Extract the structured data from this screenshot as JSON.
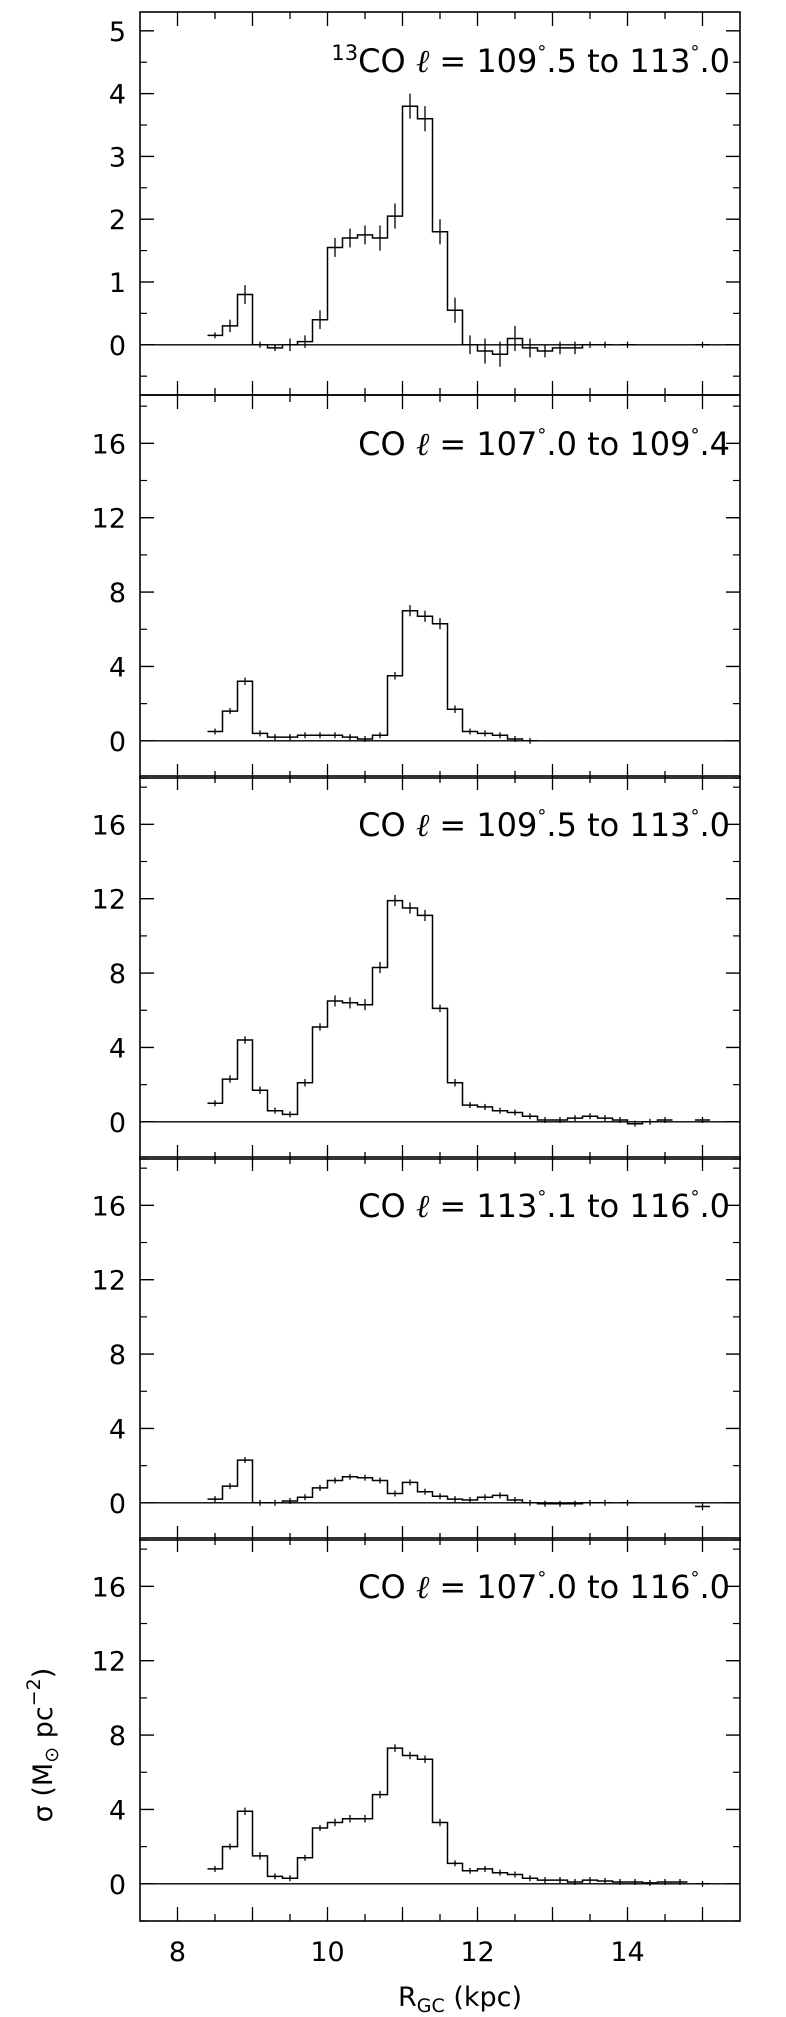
{
  "figure": {
    "xlabel": "R",
    "xlabel_sub": "GC",
    "xlabel_unit": " (kpc)",
    "ylabel": "σ (M",
    "ylabel_sun": "⊙",
    "ylabel_mid": " pc",
    "ylabel_sup": "−2",
    "ylabel_end": ")"
  },
  "chart_data": [
    {
      "type": "step",
      "panel_label": {
        "iso": "13",
        "mol": "CO",
        "lsym": "ℓ",
        "text": " = 109.5° to 113.0°",
        "pre": " = 109",
        "d1": "°",
        "mid": ".5 to 113",
        "d2": "°",
        "post": ".0"
      },
      "xlim": [
        7.5,
        15.5
      ],
      "ylim": [
        -0.8,
        5.3
      ],
      "xticks": [
        8,
        10,
        12,
        14
      ],
      "yticks": [
        0,
        1,
        2,
        3,
        4,
        5
      ],
      "ytick_labels": [
        "0",
        "1",
        "2",
        "3",
        "4",
        "5"
      ],
      "bin_width": 0.2,
      "x": [
        8.5,
        8.7,
        8.9,
        9.1,
        9.3,
        9.5,
        9.7,
        9.9,
        10.1,
        10.3,
        10.5,
        10.7,
        10.9,
        11.1,
        11.3,
        11.5,
        11.7,
        11.9,
        12.1,
        12.3,
        12.5,
        12.7,
        12.9,
        13.1,
        13.3,
        13.5,
        13.7,
        14.0,
        15.0
      ],
      "y": [
        0.15,
        0.3,
        0.8,
        0.0,
        -0.05,
        0.0,
        0.05,
        0.4,
        1.55,
        1.7,
        1.75,
        1.7,
        2.05,
        3.8,
        3.6,
        1.8,
        0.55,
        0.0,
        -0.1,
        -0.15,
        0.1,
        -0.05,
        -0.1,
        -0.05,
        -0.05,
        0.0,
        0.0,
        0.0,
        0.0
      ],
      "err": [
        0.0,
        0.1,
        0.15,
        0.0,
        0.05,
        0.1,
        0.1,
        0.15,
        0.15,
        0.15,
        0.15,
        0.2,
        0.2,
        0.2,
        0.2,
        0.2,
        0.2,
        0.15,
        0.2,
        0.2,
        0.2,
        0.15,
        0.1,
        0.1,
        0.1,
        0.05,
        0.05,
        0.05,
        0.0
      ]
    },
    {
      "type": "step",
      "panel_label": {
        "iso": "",
        "mol": "CO",
        "lsym": "ℓ",
        "pre": " = 107",
        "d1": "°",
        "mid": ".0 to 109",
        "d2": "°",
        "post": ".4"
      },
      "xlim": [
        7.5,
        15.5
      ],
      "ylim": [
        -2.0,
        18.6
      ],
      "xticks": [
        8,
        10,
        12,
        14
      ],
      "yticks": [
        0,
        4,
        8,
        12,
        16
      ],
      "ytick_labels": [
        "0",
        "4",
        "8",
        "12",
        "16"
      ],
      "bin_width": 0.2,
      "x": [
        8.5,
        8.7,
        8.9,
        9.1,
        9.3,
        9.5,
        9.7,
        9.9,
        10.1,
        10.3,
        10.5,
        10.7,
        10.9,
        11.1,
        11.3,
        11.5,
        11.7,
        11.9,
        12.1,
        12.3,
        12.5,
        12.7
      ],
      "y": [
        0.5,
        1.6,
        3.2,
        0.4,
        0.2,
        0.2,
        0.3,
        0.3,
        0.3,
        0.2,
        0.1,
        0.3,
        3.5,
        7.0,
        6.7,
        6.3,
        1.7,
        0.5,
        0.4,
        0.3,
        0.1,
        0.0
      ],
      "err": [
        0.1,
        0.1,
        0.2,
        0.1,
        0.1,
        0.1,
        0.1,
        0.1,
        0.1,
        0.1,
        0.1,
        0.1,
        0.2,
        0.3,
        0.3,
        0.3,
        0.2,
        0.1,
        0.1,
        0.1,
        0.05,
        0.05
      ]
    },
    {
      "type": "step",
      "panel_label": {
        "iso": "",
        "mol": "CO",
        "lsym": "ℓ",
        "pre": " = 109",
        "d1": "°",
        "mid": ".5 to 113",
        "d2": "°",
        "post": ".0"
      },
      "xlim": [
        7.5,
        15.5
      ],
      "ylim": [
        -2.0,
        18.6
      ],
      "xticks": [
        8,
        10,
        12,
        14
      ],
      "yticks": [
        0,
        4,
        8,
        12,
        16
      ],
      "ytick_labels": [
        "0",
        "4",
        "8",
        "12",
        "16"
      ],
      "bin_width": 0.2,
      "x": [
        8.5,
        8.7,
        8.9,
        9.1,
        9.3,
        9.5,
        9.7,
        9.9,
        10.1,
        10.3,
        10.5,
        10.7,
        10.9,
        11.1,
        11.3,
        11.5,
        11.7,
        11.9,
        12.1,
        12.3,
        12.5,
        12.7,
        12.9,
        13.1,
        13.3,
        13.5,
        13.7,
        13.9,
        14.1,
        14.3,
        14.5,
        15.0
      ],
      "y": [
        1.0,
        2.3,
        4.4,
        1.7,
        0.6,
        0.4,
        2.1,
        5.1,
        6.5,
        6.4,
        6.3,
        8.3,
        11.9,
        11.5,
        11.1,
        6.1,
        2.1,
        0.9,
        0.8,
        0.6,
        0.5,
        0.3,
        0.1,
        0.1,
        0.2,
        0.3,
        0.2,
        0.1,
        -0.1,
        0.0,
        0.1,
        0.1
      ],
      "err": [
        0.1,
        0.2,
        0.2,
        0.2,
        0.1,
        0.1,
        0.2,
        0.2,
        0.3,
        0.3,
        0.3,
        0.3,
        0.3,
        0.3,
        0.3,
        0.2,
        0.2,
        0.1,
        0.1,
        0.1,
        0.1,
        0.1,
        0.1,
        0.1,
        0.1,
        0.1,
        0.1,
        0.1,
        0.1,
        0.1,
        0.05,
        0.05
      ]
    },
    {
      "type": "step",
      "panel_label": {
        "iso": "",
        "mol": "CO",
        "lsym": "ℓ",
        "pre": " = 113",
        "d1": "°",
        "mid": ".1 to 116",
        "d2": "°",
        "post": ".0"
      },
      "xlim": [
        7.5,
        15.5
      ],
      "ylim": [
        -2.0,
        18.6
      ],
      "xticks": [
        8,
        10,
        12,
        14
      ],
      "yticks": [
        0,
        4,
        8,
        12,
        16
      ],
      "ytick_labels": [
        "0",
        "4",
        "8",
        "12",
        "16"
      ],
      "bin_width": 0.2,
      "x": [
        8.5,
        8.7,
        8.9,
        9.1,
        9.3,
        9.5,
        9.7,
        9.9,
        10.1,
        10.3,
        10.5,
        10.7,
        10.9,
        11.1,
        11.3,
        11.5,
        11.7,
        11.9,
        12.1,
        12.3,
        12.5,
        12.7,
        12.9,
        13.1,
        13.3,
        13.5,
        13.7,
        14.0,
        15.0
      ],
      "y": [
        0.2,
        0.9,
        2.3,
        0.0,
        0.0,
        0.1,
        0.3,
        0.8,
        1.2,
        1.4,
        1.35,
        1.2,
        0.5,
        1.1,
        0.6,
        0.35,
        0.2,
        0.15,
        0.3,
        0.4,
        0.15,
        0.0,
        -0.05,
        -0.05,
        -0.05,
        0.0,
        0.0,
        0.0,
        -0.2
      ],
      "err": [
        0.05,
        0.1,
        0.1,
        0.05,
        0.05,
        0.05,
        0.05,
        0.1,
        0.1,
        0.1,
        0.1,
        0.1,
        0.1,
        0.1,
        0.1,
        0.05,
        0.05,
        0.05,
        0.05,
        0.1,
        0.05,
        0.05,
        0.05,
        0.05,
        0.05,
        0.05,
        0.0,
        0.0,
        0.2
      ]
    },
    {
      "type": "step",
      "panel_label": {
        "iso": "",
        "mol": "CO",
        "lsym": "ℓ",
        "pre": " = 107",
        "d1": "°",
        "mid": ".0 to 116",
        "d2": "°",
        "post": ".0"
      },
      "xlim": [
        7.5,
        15.5
      ],
      "ylim": [
        -2.0,
        18.6
      ],
      "xticks": [
        8,
        10,
        12,
        14
      ],
      "yticks": [
        0,
        4,
        8,
        12,
        16
      ],
      "ytick_labels": [
        "0",
        "4",
        "8",
        "12",
        "16"
      ],
      "bin_width": 0.2,
      "x": [
        8.5,
        8.7,
        8.9,
        9.1,
        9.3,
        9.5,
        9.7,
        9.9,
        10.1,
        10.3,
        10.5,
        10.7,
        10.9,
        11.1,
        11.3,
        11.5,
        11.7,
        11.9,
        12.1,
        12.3,
        12.5,
        12.7,
        12.9,
        13.1,
        13.3,
        13.5,
        13.7,
        13.9,
        14.1,
        14.3,
        14.5,
        14.7,
        15.0
      ],
      "y": [
        0.8,
        2.0,
        3.9,
        1.5,
        0.4,
        0.3,
        1.4,
        3.0,
        3.3,
        3.5,
        3.5,
        4.8,
        7.3,
        6.9,
        6.7,
        3.3,
        1.1,
        0.7,
        0.8,
        0.6,
        0.5,
        0.3,
        0.2,
        0.2,
        0.1,
        0.2,
        0.15,
        0.1,
        0.1,
        0.05,
        0.1,
        0.1,
        0.0
      ],
      "err": [
        0.1,
        0.1,
        0.2,
        0.2,
        0.1,
        0.1,
        0.1,
        0.1,
        0.2,
        0.2,
        0.2,
        0.2,
        0.2,
        0.2,
        0.2,
        0.2,
        0.1,
        0.1,
        0.1,
        0.1,
        0.1,
        0.1,
        0.1,
        0.1,
        0.05,
        0.1,
        0.1,
        0.05,
        0.05,
        0.05,
        0.05,
        0.05,
        0.0
      ]
    }
  ]
}
